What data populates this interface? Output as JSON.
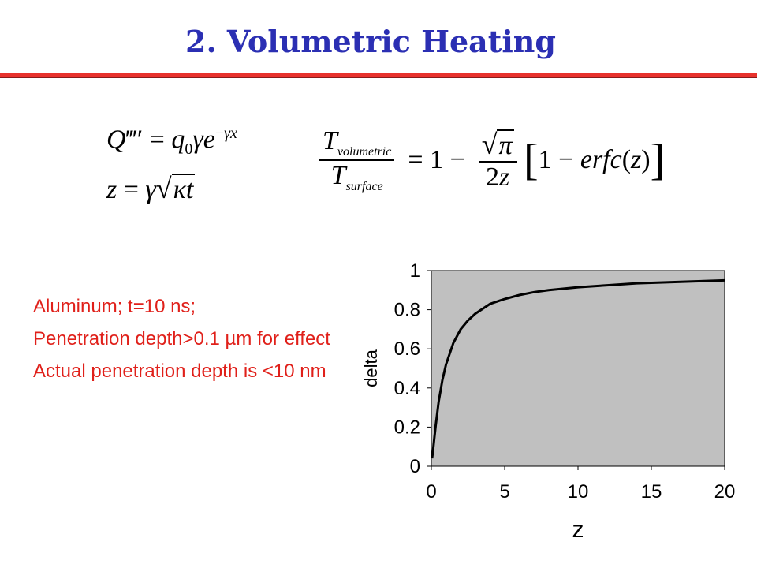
{
  "slide": {
    "title": "2. Volumetric Heating"
  },
  "notes": [
    "Aluminum; t=10 ns;",
    "Penetration depth>0.1 µm for effect",
    "Actual penetration depth is <10 nm"
  ],
  "colors": {
    "title": "#2b2fb3",
    "rule": "#e8322d",
    "notes": "#e0201a",
    "plot_bg": "#c0c0c0",
    "curve": "#000000"
  },
  "chart_data": {
    "type": "line",
    "title": "",
    "xlabel": "z",
    "ylabel": "delta",
    "xlim": [
      0,
      20
    ],
    "ylim": [
      0,
      1
    ],
    "xticks": [
      0,
      5,
      10,
      15,
      20
    ],
    "yticks": [
      0,
      0.2,
      0.4,
      0.6,
      0.8,
      1
    ],
    "grid": false,
    "legend": "none",
    "series": [
      {
        "x": [
          0.05,
          0.1,
          0.2,
          0.3,
          0.5,
          0.75,
          1,
          1.5,
          2,
          2.5,
          3,
          4,
          5,
          6,
          7,
          8,
          10,
          12,
          14,
          16,
          18,
          20
        ],
        "y": [
          0.04,
          0.07,
          0.14,
          0.21,
          0.33,
          0.44,
          0.52,
          0.63,
          0.7,
          0.745,
          0.78,
          0.83,
          0.855,
          0.875,
          0.89,
          0.9,
          0.915,
          0.925,
          0.935,
          0.94,
          0.945,
          0.95
        ]
      }
    ]
  }
}
